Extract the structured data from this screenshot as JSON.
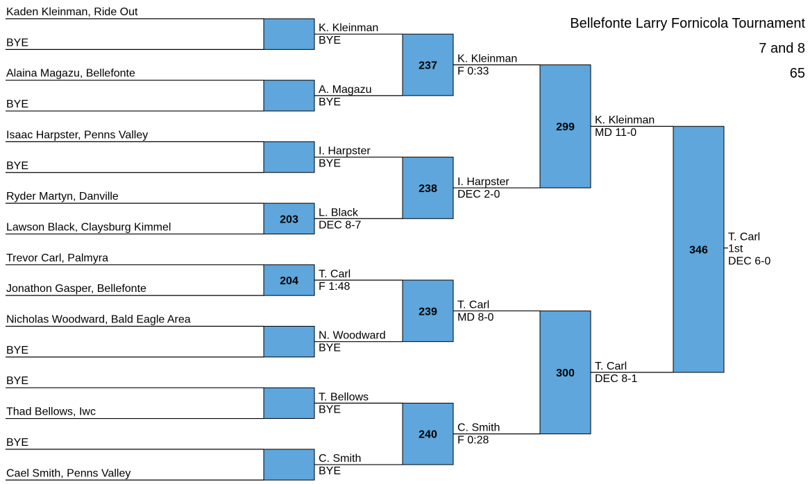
{
  "header": {
    "lines": [
      "Bellefonte Larry Fornicola Tournament",
      "7 and 8",
      "65"
    ]
  },
  "entries": [
    "Kaden Kleinman, Ride Out",
    "BYE",
    "Alaina Magazu, Bellefonte",
    "BYE",
    "Isaac Harpster, Penns Valley",
    "BYE",
    "Ryder Martyn, Danville",
    "Lawson Black, Claysburg Kimmel",
    "Trevor Carl, Palmyra",
    "Jonathon Gasper, Bellefonte",
    "Nicholas Woodward, Bald Eagle Area",
    "BYE",
    "BYE",
    "Thad Bellows, Iwc",
    "BYE",
    "Cael Smith, Penns Valley"
  ],
  "rounds": [
    [
      {
        "name": "K. Kleinman",
        "result": "BYE"
      },
      {
        "name": "A. Magazu",
        "result": "BYE"
      },
      {
        "name": "I. Harpster",
        "result": "BYE"
      },
      {
        "name": "L. Black",
        "result": "DEC 8-7",
        "bout": 203
      },
      {
        "name": "T. Carl",
        "result": "F 1:48",
        "bout": 204
      },
      {
        "name": "N. Woodward",
        "result": "BYE"
      },
      {
        "name": "T. Bellows",
        "result": "BYE"
      },
      {
        "name": "C. Smith",
        "result": "BYE"
      }
    ],
    [
      {
        "name": "K. Kleinman",
        "result": "F 0:33",
        "bout": 237
      },
      {
        "name": "I. Harpster",
        "result": "DEC 2-0",
        "bout": 238
      },
      {
        "name": "T. Carl",
        "result": "MD 8-0",
        "bout": 239
      },
      {
        "name": "C. Smith",
        "result": "F 0:28",
        "bout": 240
      }
    ],
    [
      {
        "name": "K. Kleinman",
        "result": "MD 11-0",
        "bout": 299
      },
      {
        "name": "T. Carl",
        "result": "DEC 8-1",
        "bout": 300
      }
    ],
    [
      {
        "name": "T. Carl",
        "place": "1st",
        "result": "DEC 6-0",
        "bout": 346
      }
    ]
  ]
}
